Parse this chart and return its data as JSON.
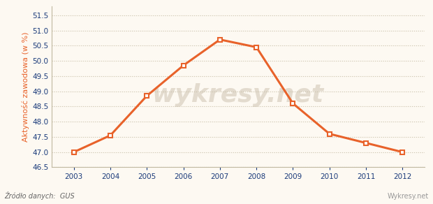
{
  "years": [
    2003,
    2004,
    2005,
    2006,
    2007,
    2008,
    2009,
    2010,
    2011,
    2012
  ],
  "values": [
    47.0,
    47.55,
    48.85,
    49.85,
    50.7,
    50.45,
    48.6,
    47.6,
    47.3,
    47.0
  ],
  "line_color": "#e8622a",
  "marker_color": "#e8622a",
  "marker_face": "#ffffff",
  "background_color": "#fdf9f2",
  "grid_color": "#c8bfa8",
  "ylabel": "Aktywność zawodowa (w %)",
  "ylabel_color": "#e8622a",
  "xlabel_color": "#1a3a7a",
  "tick_color": "#1a3a7a",
  "ylim_min": 46.5,
  "ylim_max": 51.8,
  "yticks": [
    46.5,
    47.0,
    47.5,
    48.0,
    48.5,
    49.0,
    49.5,
    50.0,
    50.5,
    51.0,
    51.5
  ],
  "source_text": "Źródło danych:  GUS",
  "watermark_text": "wykresy.net",
  "watermark_color": "#d8cfc0",
  "source_color": "#666666",
  "footer_right_text": "Wykresy.net",
  "footer_color": "#999999"
}
